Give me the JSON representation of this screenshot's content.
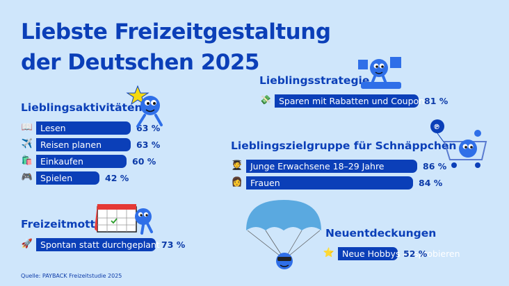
{
  "title_line1": "Liebste Freizeitgestaltung",
  "title_line2": "der Deutschen 2025",
  "source": "Quelle: PAYBACK Freizeitstudie 2025",
  "colors": {
    "background": "#cfe6fb",
    "bar": "#0b3fb8",
    "title": "#0b3fb8",
    "bar_text": "#ffffff"
  },
  "chart_data": [
    {
      "type": "bar",
      "orientation": "horizontal",
      "title": "Lieblingsaktivitäten",
      "categories": [
        "Lesen",
        "Reisen planen",
        "Einkaufen",
        "Spielen"
      ],
      "values": [
        63,
        63,
        60,
        42
      ],
      "value_labels": [
        "63 %",
        "63 %",
        "60 %",
        "42 %"
      ],
      "icons": [
        "book-icon",
        "airplane-icon",
        "shopping-bag-icon",
        "gamepad-icon"
      ],
      "unit": "%"
    },
    {
      "type": "bar",
      "orientation": "horizontal",
      "title": "Freizeitmotto",
      "categories": [
        "Spontan statt durchgeplant"
      ],
      "values": [
        73
      ],
      "value_labels": [
        "73 %"
      ],
      "icons": [
        "rocket-icon"
      ],
      "unit": "%"
    },
    {
      "type": "bar",
      "orientation": "horizontal",
      "title": "Lieblingsstrategie",
      "categories": [
        "Sparen mit Rabatten und Coupons"
      ],
      "values": [
        81
      ],
      "value_labels": [
        "81 %"
      ],
      "icons": [
        "money-icon"
      ],
      "unit": "%"
    },
    {
      "type": "bar",
      "orientation": "horizontal",
      "title": "Lieblingszielgruppe für Schnäppchen",
      "categories": [
        "Junge Erwachsene 18–29 Jahre",
        "Frauen"
      ],
      "values": [
        86,
        84
      ],
      "value_labels": [
        "86 %",
        "84 %"
      ],
      "icons": [
        "graduate-icon",
        "woman-icon"
      ],
      "unit": "%"
    },
    {
      "type": "bar",
      "orientation": "horizontal",
      "title": "Neuentdeckungen",
      "categories": [
        "Neue Hobbys ausprobieren"
      ],
      "values": [
        52
      ],
      "value_labels": [
        "52 %"
      ],
      "icons": [
        "star-icon"
      ],
      "unit": "%"
    }
  ]
}
